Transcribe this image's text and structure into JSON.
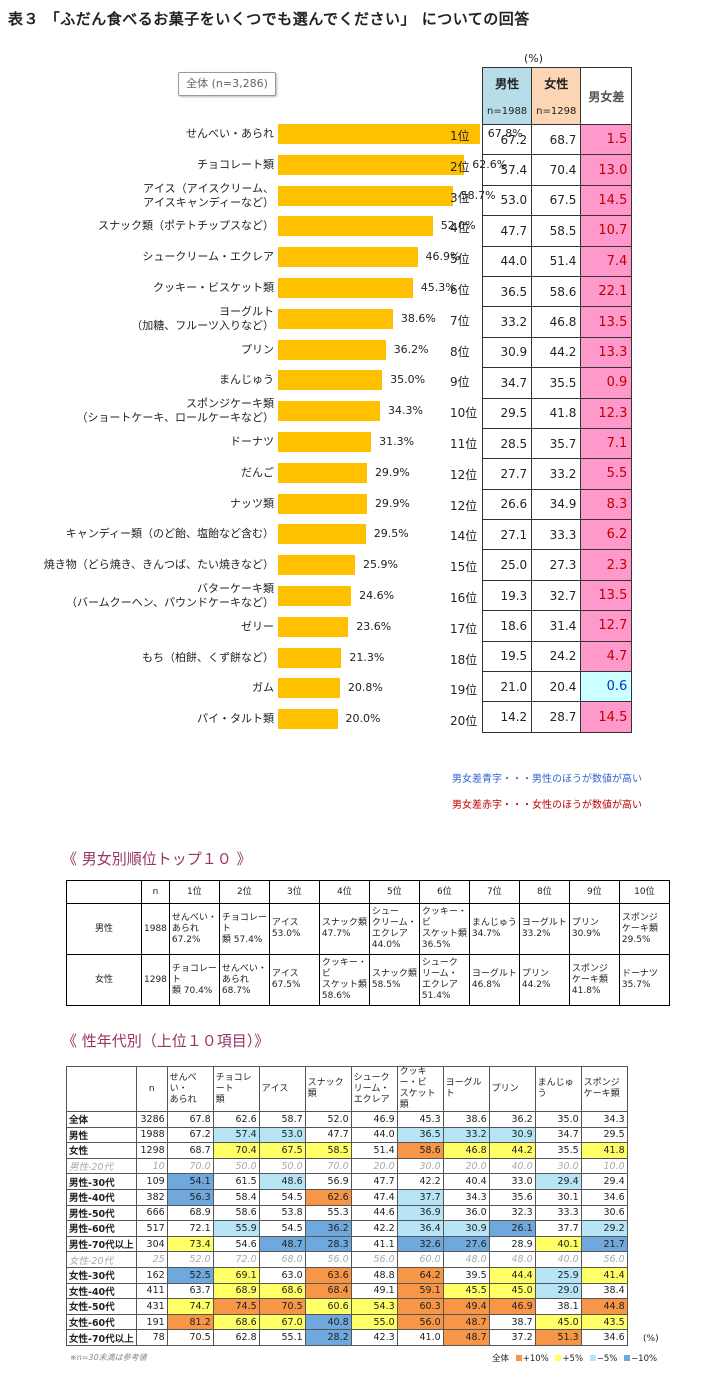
{
  "title": "表３ 「ふだん食べるお菓子をいくつでも選んでください」 についての回答",
  "unit": "(%)",
  "overall_label": "全体 (n=3,286)",
  "col_headers": {
    "male": "男性",
    "female": "女性",
    "male_n": "n=1988",
    "female_n": "n=1298",
    "diff": "男女差"
  },
  "legend_blue": "男女差青字・・・男性のほうが数値が高い",
  "legend_red": "男女差赤字・・・女性のほうが数値が高い",
  "chart_data": {
    "type": "bar",
    "orientation": "horizontal",
    "categories": [
      "せんべい・あられ",
      "チョコレート類",
      "アイス（アイスクリーム、\nアイスキャンディーなど）",
      "スナック類（ポテトチップスなど）",
      "シュークリーム・エクレア",
      "クッキー・ビスケット類",
      "ヨーグルト\n（加糖、フルーツ入りなど）",
      "プリン",
      "まんじゅう",
      "スポンジケーキ類\n（ショートケーキ、ロールケーキなど）",
      "ドーナツ",
      "だんご",
      "ナッツ類",
      "キャンディー類（のど飴、塩飴など含む）",
      "焼き物（どら焼き、きんつば、たい焼きなど）",
      "バターケーキ類\n（バームクーヘン、パウンドケーキなど）",
      "ゼリー",
      "もち（柏餅、くず餅など）",
      "ガム",
      "パイ・タルト類"
    ],
    "values": [
      67.8,
      62.6,
      58.7,
      52.0,
      46.9,
      45.3,
      38.6,
      36.2,
      35.0,
      34.3,
      31.3,
      29.9,
      29.9,
      29.5,
      25.9,
      24.6,
      23.6,
      21.3,
      20.8,
      20.0
    ],
    "value_labels": [
      "67.8%",
      "62.6%",
      "58.7%",
      "52.0%",
      "46.9%",
      "45.3%",
      "38.6%",
      "36.2%",
      "35.0%",
      "34.3%",
      "31.3%",
      "29.9%",
      "29.9%",
      "29.5%",
      "25.9%",
      "24.6%",
      "23.6%",
      "21.3%",
      "20.8%",
      "20.0%"
    ],
    "ranks": [
      "1位",
      "2位",
      "3位",
      "4位",
      "5位",
      "6位",
      "7位",
      "8位",
      "9位",
      "10位",
      "11位",
      "12位",
      "12位",
      "14位",
      "15位",
      "16位",
      "17位",
      "18位",
      "19位",
      "20位"
    ],
    "male": [
      "67.2",
      "57.4",
      "53.0",
      "47.7",
      "44.0",
      "36.5",
      "33.2",
      "30.9",
      "34.7",
      "29.5",
      "28.5",
      "27.7",
      "26.6",
      "27.1",
      "25.0",
      "19.3",
      "18.6",
      "19.5",
      "21.0",
      "14.2"
    ],
    "female": [
      "68.7",
      "70.4",
      "67.5",
      "58.5",
      "51.4",
      "58.6",
      "46.8",
      "44.2",
      "35.5",
      "41.8",
      "35.7",
      "33.2",
      "34.9",
      "33.3",
      "27.3",
      "32.7",
      "31.4",
      "24.2",
      "20.4",
      "28.7"
    ],
    "diff": [
      "1.5",
      "13.0",
      "14.5",
      "10.7",
      "7.4",
      "22.1",
      "13.5",
      "13.3",
      "0.9",
      "12.3",
      "7.1",
      "5.5",
      "8.3",
      "6.2",
      "2.3",
      "13.5",
      "12.7",
      "4.7",
      "0.6",
      "14.5"
    ],
    "diff_color": [
      "red",
      "red",
      "red",
      "red",
      "red",
      "red",
      "red",
      "red",
      "red",
      "red",
      "red",
      "red",
      "red",
      "red",
      "red",
      "red",
      "red",
      "red",
      "blue",
      "red"
    ],
    "xlim": [
      0,
      100
    ],
    "bar_color": "#ffc000"
  },
  "top10": {
    "section_title": "《 男女別順位トップ１０ 》",
    "headers": [
      "n",
      "1位",
      "2位",
      "3位",
      "4位",
      "5位",
      "6位",
      "7位",
      "8位",
      "9位",
      "10位"
    ],
    "rows": [
      {
        "label": "男性",
        "n": "1988",
        "cells": [
          "せんべい・\nあられ\n67.2%",
          "チョコレート\n類 57.4%",
          "アイス\n53.0%",
          "スナック類\n47.7%",
          "シュー\nクリーム・\nエクレア\n44.0%",
          "クッキー・ビ\nスケット類\n36.5%",
          "まんじゅう\n34.7%",
          "ヨーグルト\n33.2%",
          "プリン\n30.9%",
          "スポンジ\nケーキ類\n29.5%"
        ]
      },
      {
        "label": "女性",
        "n": "1298",
        "cells": [
          "チョコレート\n類 70.4%",
          "せんべい・\nあられ\n68.7%",
          "アイス\n67.5%",
          "クッキー・ビ\nスケット類\n58.6%",
          "スナック類\n58.5%",
          "シューク\nリーム・\nエクレア\n51.4%",
          "ヨーグルト\n46.8%",
          "プリン\n44.2%",
          "スポンジ\nケーキ類\n41.8%",
          "ドーナツ\n35.7%"
        ]
      }
    ]
  },
  "age": {
    "section_title": "《 性年代別（上位１０項目）》",
    "headers": [
      "n",
      "せんべい・\nあられ",
      "チョコレート\n類",
      "アイス",
      "スナック類",
      "シューク\nリーム・\nエクレア",
      "クッキー・ビ\nスケット類",
      "ヨーグルト",
      "プリン",
      "まんじゅう",
      "スポンジ\nケーキ類"
    ],
    "rows": [
      {
        "label": "全体",
        "n": "3286",
        "v": [
          "67.8",
          "62.6",
          "58.7",
          "52.0",
          "46.9",
          "45.3",
          "38.6",
          "36.2",
          "35.0",
          "34.3"
        ],
        "c": [
          "",
          "",
          "",
          "",
          "",
          "",
          "",
          "",
          "",
          ""
        ]
      },
      {
        "label": "男性",
        "n": "1988",
        "v": [
          "67.2",
          "57.4",
          "53.0",
          "47.7",
          "44.0",
          "36.5",
          "33.2",
          "30.9",
          "34.7",
          "29.5"
        ],
        "c": [
          "",
          "m5",
          "m5",
          "",
          "",
          "m5",
          "m5",
          "m5",
          "",
          ""
        ]
      },
      {
        "label": "女性",
        "n": "1298",
        "v": [
          "68.7",
          "70.4",
          "67.5",
          "58.5",
          "51.4",
          "58.6",
          "46.8",
          "44.2",
          "35.5",
          "41.8"
        ],
        "c": [
          "",
          "p5",
          "p5",
          "p5",
          "",
          "p10",
          "p5",
          "p5",
          "",
          "p5"
        ]
      },
      {
        "label": "男性-20代",
        "n": "10",
        "v": [
          "70.0",
          "50.0",
          "50.0",
          "70.0",
          "20.0",
          "30.0",
          "20.0",
          "40.0",
          "30.0",
          "10.0"
        ],
        "c": [
          "",
          "",
          "",
          "",
          "",
          "",
          "",
          "",
          "",
          ""
        ],
        "gray": true
      },
      {
        "label": "男性-30代",
        "n": "109",
        "v": [
          "54.1",
          "61.5",
          "48.6",
          "56.9",
          "47.7",
          "42.2",
          "40.4",
          "33.0",
          "29.4",
          "29.4"
        ],
        "c": [
          "m10",
          "",
          "m5",
          "",
          "",
          "",
          "",
          "",
          "m5",
          ""
        ]
      },
      {
        "label": "男性-40代",
        "n": "382",
        "v": [
          "56.3",
          "58.4",
          "54.5",
          "62.6",
          "47.4",
          "37.7",
          "34.3",
          "35.6",
          "30.1",
          "34.6"
        ],
        "c": [
          "m10",
          "",
          "",
          "p10",
          "",
          "m5",
          "",
          "",
          "",
          ""
        ]
      },
      {
        "label": "男性-50代",
        "n": "666",
        "v": [
          "68.9",
          "58.6",
          "53.8",
          "55.3",
          "44.6",
          "36.9",
          "36.0",
          "32.3",
          "33.3",
          "30.6"
        ],
        "c": [
          "",
          "",
          "",
          "",
          "",
          "m5",
          "",
          "",
          "",
          ""
        ]
      },
      {
        "label": "男性-60代",
        "n": "517",
        "v": [
          "72.1",
          "55.9",
          "54.5",
          "36.2",
          "42.2",
          "36.4",
          "30.9",
          "26.1",
          "37.7",
          "29.2"
        ],
        "c": [
          "",
          "m5",
          "",
          "m10",
          "",
          "m5",
          "m5",
          "m10",
          "",
          "m5"
        ]
      },
      {
        "label": "男性-70代以上",
        "n": "304",
        "v": [
          "73.4",
          "54.6",
          "48.7",
          "28.3",
          "41.1",
          "32.6",
          "27.6",
          "28.9",
          "40.1",
          "21.7"
        ],
        "c": [
          "p5",
          "",
          "m10",
          "m10",
          "",
          "m10",
          "m10",
          "",
          "p5",
          "m10"
        ]
      },
      {
        "label": "女性-20代",
        "n": "25",
        "v": [
          "52.0",
          "72.0",
          "68.0",
          "56.0",
          "56.0",
          "60.0",
          "48.0",
          "48.0",
          "40.0",
          "56.0"
        ],
        "c": [
          "",
          "",
          "",
          "",
          "",
          "",
          "",
          "",
          "",
          ""
        ],
        "gray": true
      },
      {
        "label": "女性-30代",
        "n": "162",
        "v": [
          "52.5",
          "69.1",
          "63.0",
          "63.6",
          "48.8",
          "64.2",
          "39.5",
          "44.4",
          "25.9",
          "41.4"
        ],
        "c": [
          "m10",
          "p5",
          "",
          "p10",
          "",
          "p10",
          "",
          "p5",
          "m5",
          "p5"
        ]
      },
      {
        "label": "女性-40代",
        "n": "411",
        "v": [
          "63.7",
          "68.9",
          "68.6",
          "68.4",
          "49.1",
          "59.1",
          "45.5",
          "45.0",
          "29.0",
          "38.4"
        ],
        "c": [
          "",
          "p5",
          "p5",
          "p10",
          "",
          "p10",
          "p5",
          "p5",
          "m5",
          ""
        ]
      },
      {
        "label": "女性-50代",
        "n": "431",
        "v": [
          "74.7",
          "74.5",
          "70.5",
          "60.6",
          "54.3",
          "60.3",
          "49.4",
          "46.9",
          "38.1",
          "44.8"
        ],
        "c": [
          "p5",
          "p10",
          "p10",
          "p5",
          "p5",
          "p10",
          "p10",
          "p10",
          "",
          "p10"
        ]
      },
      {
        "label": "女性-60代",
        "n": "191",
        "v": [
          "81.2",
          "68.6",
          "67.0",
          "40.8",
          "55.0",
          "56.0",
          "48.7",
          "38.7",
          "45.0",
          "43.5"
        ],
        "c": [
          "p10",
          "p5",
          "p5",
          "m10",
          "p5",
          "p10",
          "p10",
          "",
          "p5",
          "p5"
        ]
      },
      {
        "label": "女性-70代以上",
        "n": "78",
        "v": [
          "70.5",
          "62.8",
          "55.1",
          "28.2",
          "42.3",
          "41.0",
          "48.7",
          "37.2",
          "51.3",
          "34.6"
        ],
        "c": [
          "",
          "",
          "",
          "m10",
          "",
          "",
          "p10",
          "",
          "p10",
          ""
        ]
      }
    ],
    "unit": "(%)",
    "note": "※n=30未満は参考値",
    "legend": {
      "base": "全体",
      "p10": "+10%",
      "p5": "+5%",
      "m5": "−5%",
      "m10": "−10%"
    }
  }
}
